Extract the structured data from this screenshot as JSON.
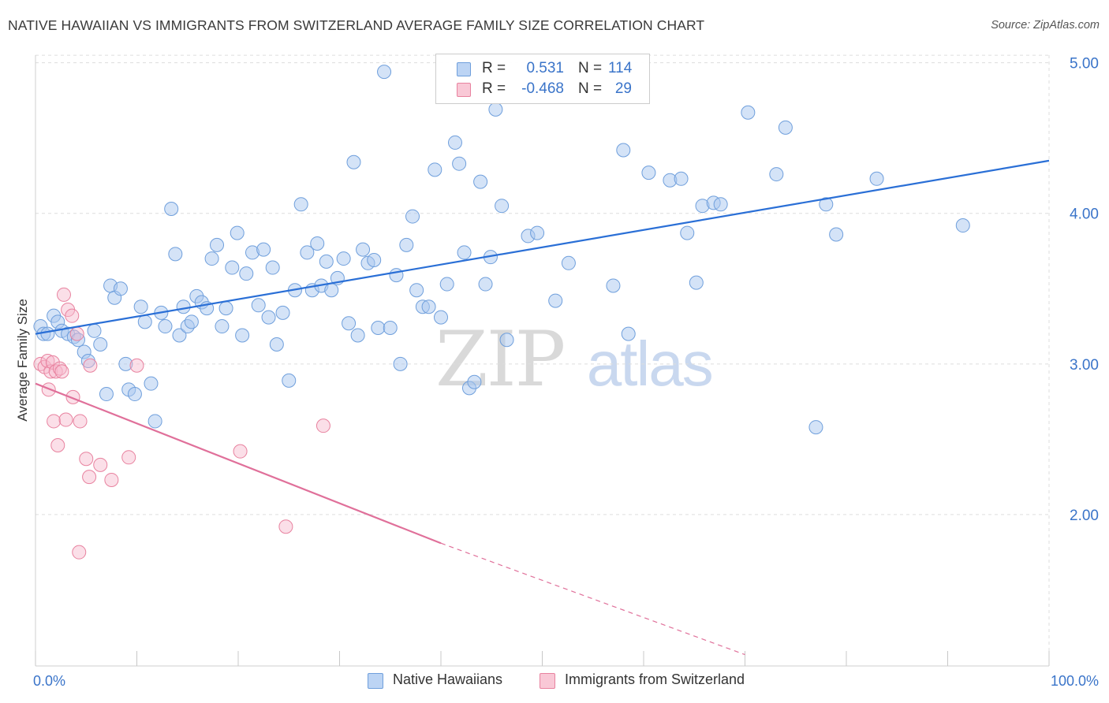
{
  "header": {
    "title": "NATIVE HAWAIIAN VS IMMIGRANTS FROM SWITZERLAND AVERAGE FAMILY SIZE CORRELATION CHART",
    "source": "Source: ZipAtlas.com"
  },
  "watermark": {
    "zip": "ZIP",
    "atlas": "atlas"
  },
  "legend": {
    "r_label": "R =",
    "n_label": "N =",
    "rows": [
      {
        "r": "0.531",
        "n": "114"
      },
      {
        "r": "-0.468",
        "n": "29"
      }
    ]
  },
  "chart_data": {
    "type": "scatter",
    "ylabel": "Average Family Size",
    "xlim": [
      0,
      100
    ],
    "ylim": [
      1.0,
      5.15
    ],
    "x_tick_labels": {
      "left": "0.0%",
      "right": "100.0%"
    },
    "y_ticks": [
      {
        "value": 2.0,
        "label": "2.00"
      },
      {
        "value": 3.0,
        "label": "3.00"
      },
      {
        "value": 4.0,
        "label": "4.00"
      },
      {
        "value": 5.0,
        "label": "5.00"
      }
    ],
    "grid": true,
    "legend_placement": "top-center",
    "colors": {
      "blue_fill": "#a9c8f0",
      "blue_stroke": "#6f9fdc",
      "blue_line": "#2a6fd6",
      "pink_fill": "#f6b8cb",
      "pink_stroke": "#e8829f",
      "pink_line": "#e0709a",
      "axis_text": "#3a74c9",
      "grid": "#dddddd"
    },
    "series": [
      {
        "name": "Native Hawaiians",
        "color": "#a9c8f0",
        "trend": {
          "x0": 0,
          "y0": 3.2,
          "x1": 100,
          "y1": 4.35
        },
        "points": [
          [
            0.5,
            3.25
          ],
          [
            0.8,
            3.2
          ],
          [
            1.2,
            3.2
          ],
          [
            1.8,
            3.32
          ],
          [
            2.2,
            3.28
          ],
          [
            2.6,
            3.22
          ],
          [
            3.2,
            3.2
          ],
          [
            3.8,
            3.18
          ],
          [
            4.2,
            3.16
          ],
          [
            4.8,
            3.08
          ],
          [
            5.2,
            3.02
          ],
          [
            5.8,
            3.22
          ],
          [
            6.4,
            3.13
          ],
          [
            7.0,
            2.8
          ],
          [
            7.4,
            3.52
          ],
          [
            7.8,
            3.44
          ],
          [
            8.4,
            3.5
          ],
          [
            8.9,
            3.0
          ],
          [
            9.2,
            2.83
          ],
          [
            9.8,
            2.8
          ],
          [
            10.4,
            3.38
          ],
          [
            10.8,
            3.28
          ],
          [
            11.4,
            2.87
          ],
          [
            11.8,
            2.62
          ],
          [
            12.4,
            3.34
          ],
          [
            12.8,
            3.25
          ],
          [
            13.4,
            4.03
          ],
          [
            13.8,
            3.73
          ],
          [
            14.2,
            3.19
          ],
          [
            14.6,
            3.38
          ],
          [
            15.0,
            3.25
          ],
          [
            15.4,
            3.28
          ],
          [
            15.9,
            3.45
          ],
          [
            16.4,
            3.41
          ],
          [
            16.9,
            3.37
          ],
          [
            17.4,
            3.7
          ],
          [
            17.9,
            3.79
          ],
          [
            18.4,
            3.25
          ],
          [
            18.8,
            3.37
          ],
          [
            19.4,
            3.64
          ],
          [
            19.9,
            3.87
          ],
          [
            20.4,
            3.19
          ],
          [
            20.8,
            3.6
          ],
          [
            21.4,
            3.74
          ],
          [
            22.0,
            3.39
          ],
          [
            22.5,
            3.76
          ],
          [
            23.0,
            3.31
          ],
          [
            23.4,
            3.64
          ],
          [
            23.8,
            3.13
          ],
          [
            24.4,
            3.34
          ],
          [
            25.0,
            2.89
          ],
          [
            25.6,
            3.49
          ],
          [
            26.2,
            4.06
          ],
          [
            26.8,
            3.74
          ],
          [
            27.3,
            3.49
          ],
          [
            27.8,
            3.8
          ],
          [
            28.2,
            3.52
          ],
          [
            28.7,
            3.68
          ],
          [
            29.2,
            3.49
          ],
          [
            29.8,
            3.57
          ],
          [
            30.4,
            3.7
          ],
          [
            30.9,
            3.27
          ],
          [
            31.4,
            4.34
          ],
          [
            31.8,
            3.19
          ],
          [
            32.3,
            3.76
          ],
          [
            32.8,
            3.67
          ],
          [
            33.4,
            3.69
          ],
          [
            33.8,
            3.24
          ],
          [
            34.4,
            4.94
          ],
          [
            35.0,
            3.24
          ],
          [
            35.6,
            3.59
          ],
          [
            36.0,
            3.0
          ],
          [
            36.6,
            3.79
          ],
          [
            37.2,
            3.98
          ],
          [
            37.6,
            3.49
          ],
          [
            38.2,
            3.38
          ],
          [
            38.8,
            3.38
          ],
          [
            39.4,
            4.29
          ],
          [
            40.0,
            3.31
          ],
          [
            40.6,
            3.53
          ],
          [
            41.4,
            4.47
          ],
          [
            41.8,
            4.33
          ],
          [
            42.3,
            3.74
          ],
          [
            42.8,
            2.84
          ],
          [
            43.3,
            2.88
          ],
          [
            43.9,
            4.21
          ],
          [
            44.4,
            3.53
          ],
          [
            44.9,
            3.71
          ],
          [
            45.4,
            4.69
          ],
          [
            46.0,
            4.05
          ],
          [
            46.5,
            3.16
          ],
          [
            48.6,
            3.85
          ],
          [
            49.5,
            3.87
          ],
          [
            51.3,
            3.42
          ],
          [
            52.6,
            3.67
          ],
          [
            57.0,
            3.52
          ],
          [
            58.0,
            4.42
          ],
          [
            58.5,
            3.2
          ],
          [
            60.5,
            4.27
          ],
          [
            62.6,
            4.22
          ],
          [
            63.7,
            4.23
          ],
          [
            64.3,
            3.87
          ],
          [
            65.2,
            3.54
          ],
          [
            65.8,
            4.05
          ],
          [
            66.9,
            4.07
          ],
          [
            67.6,
            4.06
          ],
          [
            70.3,
            4.67
          ],
          [
            73.1,
            4.26
          ],
          [
            74.0,
            4.57
          ],
          [
            77.0,
            2.58
          ],
          [
            78.0,
            4.06
          ],
          [
            79.0,
            3.86
          ],
          [
            83.0,
            4.23
          ],
          [
            91.5,
            3.92
          ]
        ]
      },
      {
        "name": "Immigrants from Switzerland",
        "color": "#f6b8cb",
        "trend": {
          "x0": 0,
          "y0": 2.87,
          "x1": 40,
          "y1": 1.81,
          "dash_x1": 70,
          "dash_y1": 1.07
        },
        "points": [
          [
            0.5,
            3.0
          ],
          [
            0.9,
            2.98
          ],
          [
            1.2,
            3.02
          ],
          [
            1.5,
            2.95
          ],
          [
            1.7,
            3.01
          ],
          [
            2.0,
            2.95
          ],
          [
            2.4,
            2.97
          ],
          [
            2.8,
            3.46
          ],
          [
            3.2,
            3.36
          ],
          [
            3.6,
            3.32
          ],
          [
            4.1,
            3.2
          ],
          [
            1.3,
            2.83
          ],
          [
            1.8,
            2.62
          ],
          [
            2.2,
            2.46
          ],
          [
            2.6,
            2.95
          ],
          [
            3.0,
            2.63
          ],
          [
            3.7,
            2.78
          ],
          [
            4.4,
            2.62
          ],
          [
            5.4,
            2.99
          ],
          [
            5.0,
            2.37
          ],
          [
            5.3,
            2.25
          ],
          [
            6.4,
            2.33
          ],
          [
            7.5,
            2.23
          ],
          [
            9.2,
            2.38
          ],
          [
            10.0,
            2.99
          ],
          [
            20.2,
            2.42
          ],
          [
            24.7,
            1.92
          ],
          [
            28.4,
            2.59
          ],
          [
            4.3,
            1.75
          ]
        ]
      }
    ]
  },
  "bottom_legend": [
    {
      "label": "Native Hawaiians"
    },
    {
      "label": "Immigrants from Switzerland"
    }
  ]
}
